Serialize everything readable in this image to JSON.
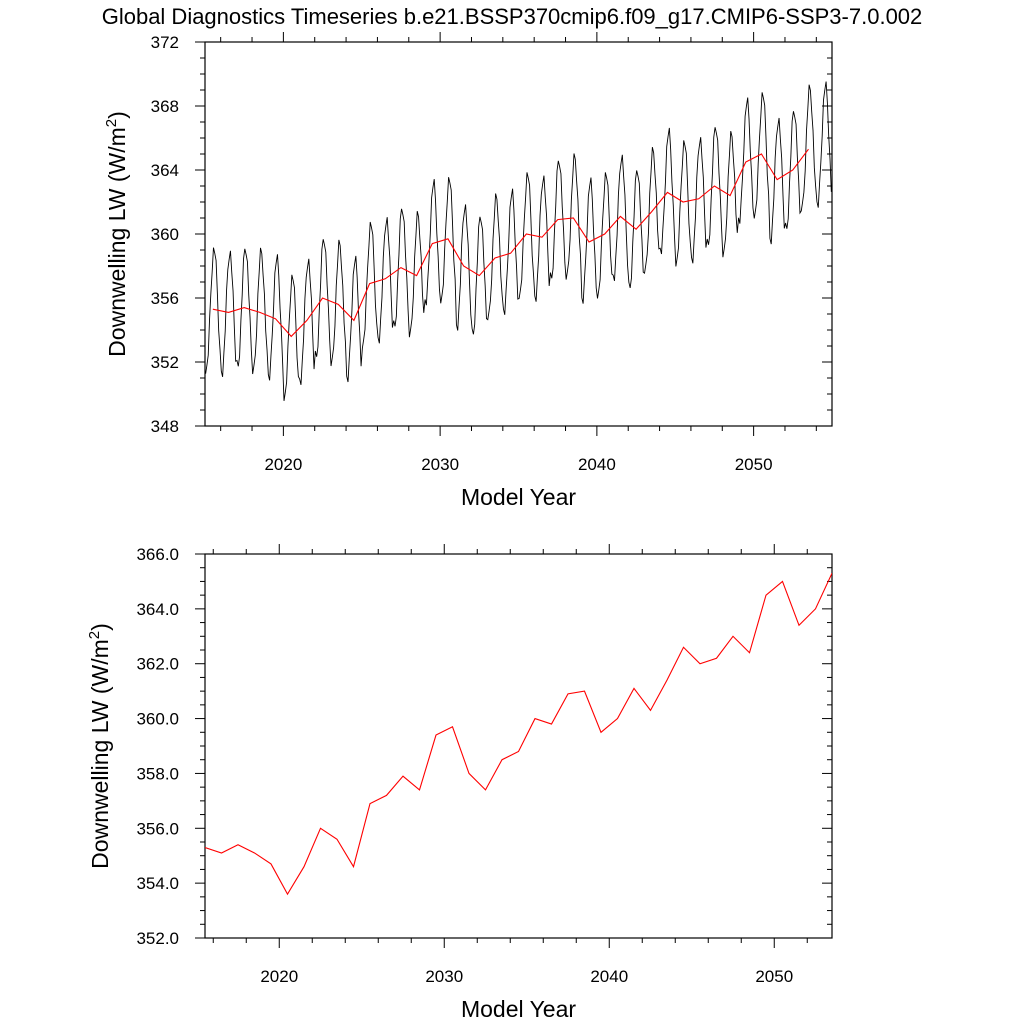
{
  "title": "Global Diagnostics Timeseries b.e21.BSSP370cmip6.f09_g17.CMIP6-SSP3-7.0.002",
  "colors": {
    "monthly": "#000000",
    "annual": "#ff0000"
  },
  "chart_data": [
    {
      "type": "line",
      "xlabel": "Model Year",
      "ylabel_main": "Downwelling LW (W/m",
      "ylabel_sup": "2",
      "ylabel_close": ")",
      "xlim": [
        2015,
        2055
      ],
      "ylim": [
        348,
        372
      ],
      "x_ticks": [
        2020,
        2030,
        2040,
        2050
      ],
      "x_tick_labels": [
        "2020",
        "2030",
        "2040",
        "2050"
      ],
      "y_ticks": [
        348,
        352,
        356,
        360,
        364,
        368,
        372
      ],
      "y_tick_labels": [
        "348",
        "352",
        "356",
        "360",
        "364",
        "368",
        "372"
      ],
      "series": [
        {
          "kind": "monthly",
          "color": "#000000",
          "x_start": 2015.04,
          "x_step": 0.0833333,
          "annual_means": [
            355.3,
            355.1,
            355.4,
            355.1,
            354.7,
            353.6,
            354.6,
            356.0,
            355.6,
            354.6,
            356.9,
            357.2,
            357.9,
            357.4,
            359.4,
            359.7,
            358.0,
            357.4,
            358.5,
            358.8,
            360.0,
            359.8,
            360.9,
            361.0,
            359.5,
            360.0,
            361.1,
            360.3,
            361.4,
            362.6,
            362.0,
            362.2,
            363.0,
            362.4,
            364.5,
            365.0,
            363.4,
            364.0,
            365.3,
            365.5
          ],
          "seasonal_amplitude": 4.0
        },
        {
          "kind": "annual",
          "color": "#ff0000",
          "x": [
            2015.5,
            2016.5,
            2017.5,
            2018.5,
            2019.5,
            2020.5,
            2021.5,
            2022.5,
            2023.5,
            2024.5,
            2025.5,
            2026.5,
            2027.5,
            2028.5,
            2029.5,
            2030.5,
            2031.5,
            2032.5,
            2033.5,
            2034.5,
            2035.5,
            2036.5,
            2037.5,
            2038.5,
            2039.5,
            2040.5,
            2041.5,
            2042.5,
            2043.5,
            2044.5,
            2045.5,
            2046.5,
            2047.5,
            2048.5,
            2049.5,
            2050.5,
            2051.5,
            2052.5,
            2053.5
          ],
          "y": [
            355.3,
            355.1,
            355.4,
            355.1,
            354.7,
            353.6,
            354.6,
            356.0,
            355.6,
            354.6,
            356.9,
            357.2,
            357.9,
            357.4,
            359.4,
            359.7,
            358.0,
            357.4,
            358.5,
            358.8,
            360.0,
            359.8,
            360.9,
            361.0,
            359.5,
            360.0,
            361.1,
            360.3,
            361.4,
            362.6,
            362.0,
            362.2,
            363.0,
            362.4,
            364.5,
            365.0,
            363.4,
            364.0,
            365.3
          ]
        }
      ]
    },
    {
      "type": "line",
      "xlabel": "Model Year",
      "ylabel_main": "Downwelling LW (W/m",
      "ylabel_sup": "2",
      "ylabel_close": ")",
      "xlim": [
        2015.5,
        2053.5
      ],
      "ylim": [
        352,
        366
      ],
      "x_ticks": [
        2020,
        2030,
        2040,
        2050
      ],
      "x_tick_labels": [
        "2020",
        "2030",
        "2040",
        "2050"
      ],
      "y_ticks": [
        352,
        354,
        356,
        358,
        360,
        362,
        364,
        366
      ],
      "y_tick_labels": [
        "352.0",
        "354.0",
        "356.0",
        "358.0",
        "360.0",
        "362.0",
        "364.0",
        "366.0"
      ],
      "series": [
        {
          "kind": "annual",
          "color": "#ff0000",
          "x": [
            2015.5,
            2016.5,
            2017.5,
            2018.5,
            2019.5,
            2020.5,
            2021.5,
            2022.5,
            2023.5,
            2024.5,
            2025.5,
            2026.5,
            2027.5,
            2028.5,
            2029.5,
            2030.5,
            2031.5,
            2032.5,
            2033.5,
            2034.5,
            2035.5,
            2036.5,
            2037.5,
            2038.5,
            2039.5,
            2040.5,
            2041.5,
            2042.5,
            2043.5,
            2044.5,
            2045.5,
            2046.5,
            2047.5,
            2048.5,
            2049.5,
            2050.5,
            2051.5,
            2052.5,
            2053.5
          ],
          "y": [
            355.3,
            355.1,
            355.4,
            355.1,
            354.7,
            353.6,
            354.6,
            356.0,
            355.6,
            354.6,
            356.9,
            357.2,
            357.9,
            357.4,
            359.4,
            359.7,
            358.0,
            357.4,
            358.5,
            358.8,
            360.0,
            359.8,
            360.9,
            361.0,
            359.5,
            360.0,
            361.1,
            360.3,
            361.4,
            362.6,
            362.0,
            362.2,
            363.0,
            362.4,
            364.5,
            365.0,
            363.4,
            364.0,
            365.3
          ]
        }
      ]
    }
  ]
}
